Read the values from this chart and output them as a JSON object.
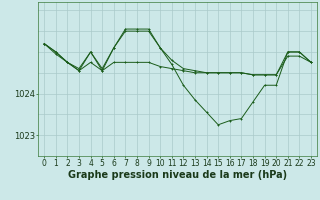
{
  "bg_color": "#cce8e8",
  "grid_color": "#aacaca",
  "line_color": "#1a5c1a",
  "xlabel": "Graphe pression niveau de la mer (hPa)",
  "xlabel_fontsize": 7,
  "tick_fontsize": 6,
  "ylim": [
    1022.5,
    1026.2
  ],
  "xlim": [
    -0.5,
    23.5
  ],
  "xticks": [
    0,
    1,
    2,
    3,
    4,
    5,
    6,
    7,
    8,
    9,
    10,
    11,
    12,
    13,
    14,
    15,
    16,
    17,
    18,
    19,
    20,
    21,
    22,
    23
  ],
  "yticks": [
    1023,
    1024
  ],
  "series1_y": [
    1025.2,
    1025.0,
    1024.75,
    1024.55,
    1024.75,
    1024.55,
    1024.75,
    1024.75,
    1024.75,
    1024.75,
    1024.65,
    1024.6,
    1024.55,
    1024.5,
    1024.5,
    1024.5,
    1024.5,
    1024.5,
    1024.45,
    1024.45,
    1024.45,
    1024.9,
    1024.9,
    1024.75
  ],
  "series2_y": [
    1025.2,
    1025.0,
    1024.75,
    1024.6,
    1025.0,
    1024.6,
    1025.1,
    1025.5,
    1025.5,
    1025.5,
    1025.1,
    1024.8,
    1024.6,
    1024.55,
    1024.5,
    1024.5,
    1024.5,
    1024.5,
    1024.45,
    1024.45,
    1024.45,
    1025.0,
    1025.0,
    1024.75
  ],
  "series3_y": [
    1025.2,
    1024.95,
    1024.75,
    1024.55,
    1025.0,
    1024.55,
    1025.1,
    1025.55,
    1025.55,
    1025.55,
    1025.1,
    1024.7,
    1024.2,
    1023.85,
    1023.55,
    1023.25,
    1023.35,
    1023.4,
    1023.8,
    1024.2,
    1024.2,
    1025.0,
    1025.0,
    1024.75
  ]
}
